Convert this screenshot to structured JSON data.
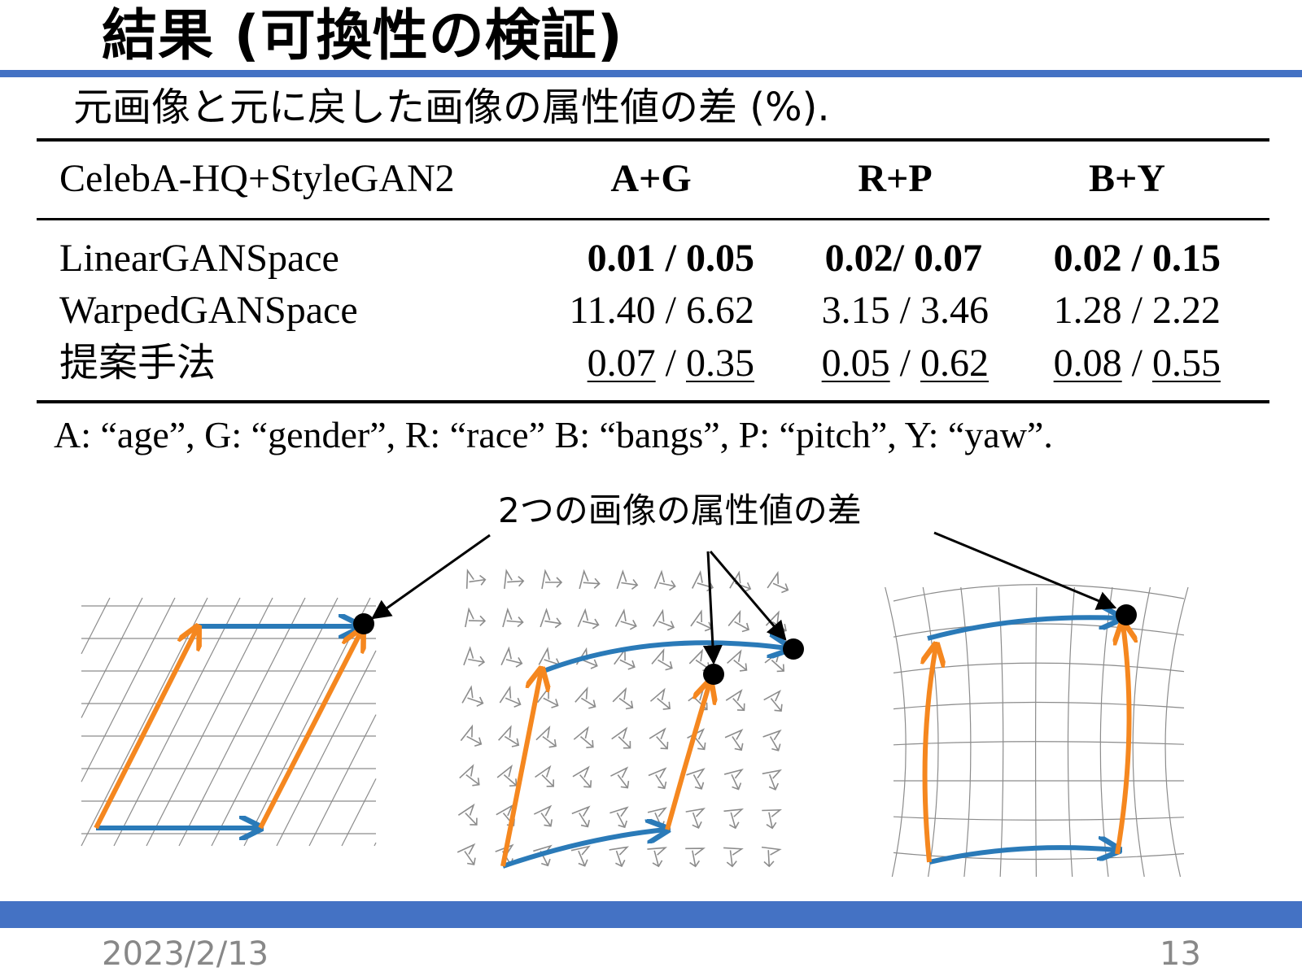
{
  "slide": {
    "title": "結果 (可換性の検証)",
    "subtitle": "元画像と元に戻した画像の属性値の差 (%).",
    "footer_date": "2023/2/13",
    "page_number": "13"
  },
  "table": {
    "headers": [
      "CelebA-HQ+StyleGAN2",
      "A+G",
      "R+P",
      "B+Y"
    ],
    "rows": [
      {
        "method": "LinearGANSpace",
        "cells": [
          {
            "a": "0.01",
            "b": "0.05"
          },
          {
            "a": "0.02",
            "b": "0.07"
          },
          {
            "a": "0.02",
            "b": "0.15"
          }
        ]
      },
      {
        "method": "WarpedGANSpace",
        "cells": [
          {
            "a": "11.40",
            "b": "6.62"
          },
          {
            "a": "3.15",
            "b": "3.46"
          },
          {
            "a": "1.28",
            "b": "2.22"
          }
        ]
      },
      {
        "method": "提案手法",
        "cells": [
          {
            "a": "0.07",
            "b": "0.35"
          },
          {
            "a": "0.05",
            "b": "0.62"
          },
          {
            "a": "0.08",
            "b": "0.55"
          }
        ]
      }
    ],
    "separators": [
      "/",
      "/ ",
      "/"
    ],
    "row1_b_sep": "/",
    "footnote": "A: “age”, G: “gender”, R: “race” B: “bangs”, P: “pitch”, Y: “yaw”."
  },
  "figure": {
    "callout": "2つの画像の属性値の差",
    "colors": {
      "blue": "#2a7ab8",
      "orange": "#f5871f",
      "grid": "#8c8c8c",
      "accent_bar": "#4472c4"
    },
    "icons": [
      "dot-icon",
      "arrow-glyph-icon"
    ]
  }
}
